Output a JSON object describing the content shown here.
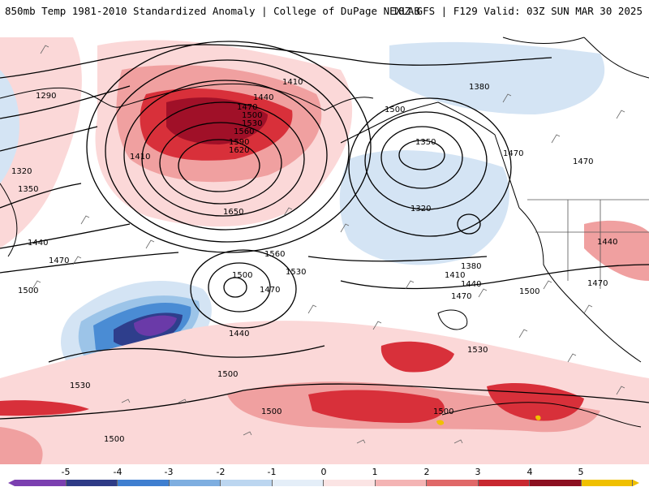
{
  "header": {
    "left": "850mb Temp 1981-2010 Standardized Anomaly | College of DuPage NEXLAB",
    "right": "18Z GFS | F129 Valid: 03Z SUN MAR 30 2025"
  },
  "map": {
    "contour_labels": [
      "1290",
      "1320",
      "1350",
      "1410",
      "1440",
      "1470",
      "1500",
      "1530",
      "1560",
      "1590",
      "1620",
      "1650",
      "1380",
      "1410",
      "1440",
      "1470",
      "1500",
      "1350",
      "1320",
      "1380",
      "1410",
      "1440",
      "1470",
      "1500",
      "1560",
      "1530",
      "1500",
      "1470",
      "1440",
      "1500",
      "1530",
      "1500",
      "1500",
      "1500",
      "1530",
      "1440",
      "1470",
      "1470",
      "1470",
      "1500"
    ],
    "colors": {
      "deep_red": "#a01028",
      "red": "#d8303a",
      "light_red": "#f0a0a0",
      "pale_red": "#fbd8d8",
      "pale_blue": "#d4e4f4",
      "light_blue": "#9cc4e8",
      "blue": "#4a8cd4",
      "dark_blue": "#2e3e8c",
      "purple": "#6a3aa8"
    }
  },
  "colorbar": {
    "ticks": [
      "-5",
      "-4",
      "-3",
      "-2",
      "-1",
      "0",
      "1",
      "2",
      "3",
      "4",
      "5"
    ],
    "colors": [
      "#7b3fb0",
      "#2e3b86",
      "#3f7fd0",
      "#7eaee0",
      "#bcd6f0",
      "#e4eef8",
      "#fbe4e4",
      "#f4b4b4",
      "#e06868",
      "#c82830",
      "#8c1020",
      "#f0c000"
    ]
  }
}
